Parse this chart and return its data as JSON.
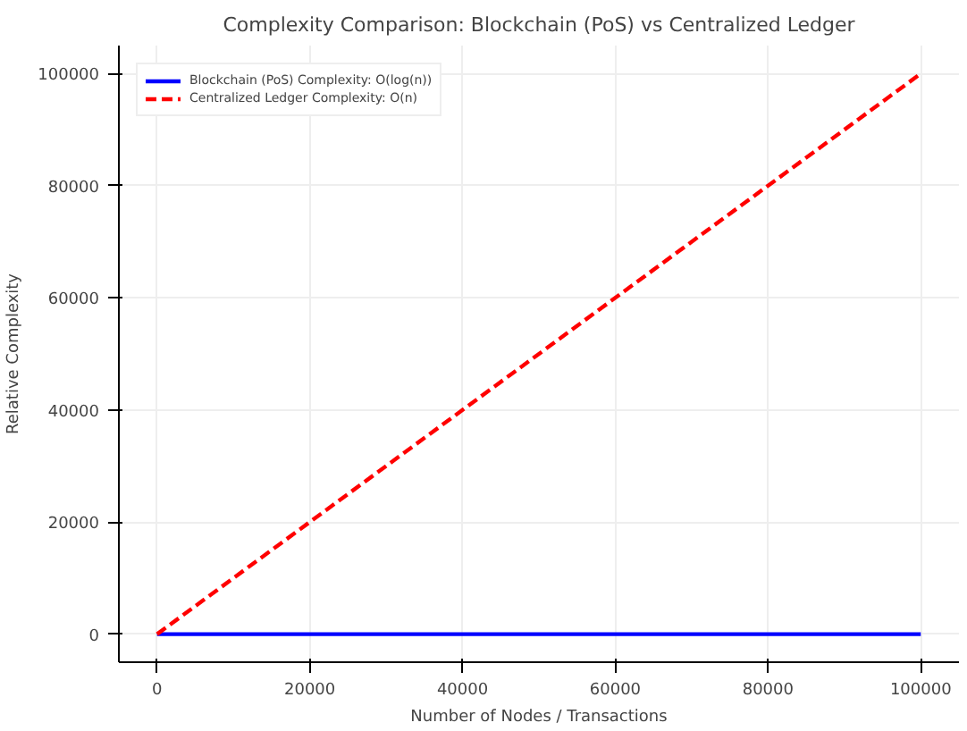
{
  "chart_data": {
    "type": "line",
    "title": "Complexity Comparison: Blockchain (PoS) vs Centralized Ledger",
    "xlabel": "Number of Nodes / Transactions",
    "ylabel": "Relative Complexity",
    "x": [
      0,
      100000
    ],
    "series": [
      {
        "name": "Blockchain (PoS) Complexity: O(log(n))",
        "color": "#0000ff",
        "values": [
          0,
          0
        ],
        "line_style": "solid"
      },
      {
        "name": "Centralized Ledger Complexity: O(n)",
        "color": "#ff0000",
        "values": [
          0,
          100000
        ],
        "line_style": "dashed"
      }
    ],
    "xlim": [
      -5000,
      105000
    ],
    "ylim": [
      -5000,
      105000
    ],
    "xticks": [
      0,
      20000,
      40000,
      60000,
      80000,
      100000
    ],
    "yticks": [
      0,
      20000,
      40000,
      60000,
      80000,
      100000
    ],
    "grid": true,
    "legend": "top left"
  }
}
